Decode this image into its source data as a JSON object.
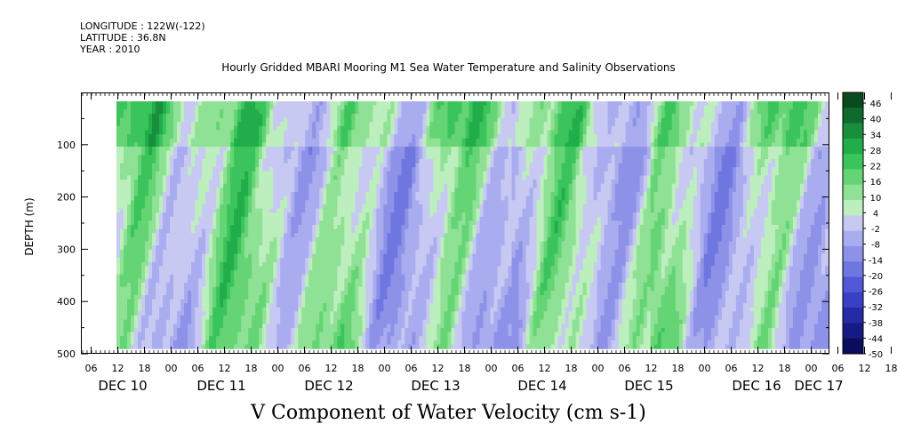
{
  "header": {
    "longitude": "LONGITUDE : 122W(-122)",
    "latitude": "LATITUDE : 36.8N",
    "year": "YEAR : 2010"
  },
  "title": "Hourly Gridded MBARI Mooring M1 Sea Water Temperature and Salinity Observations",
  "variable_title": "V Component of Water Velocity (cm s-1)",
  "chart_data": {
    "type": "heatmap",
    "title": "Hourly Gridded MBARI Mooring M1 Sea Water Temperature and Salinity Observations",
    "subtitle": "V Component of Water Velocity (cm s-1)",
    "xlabel": "",
    "ylabel": "DEPTH (m)",
    "y_ticks": [
      100,
      200,
      300,
      400,
      500
    ],
    "ylim": [
      500,
      0
    ],
    "x_hour_ticks": [
      "06",
      "12",
      "18",
      "00",
      "06",
      "12",
      "18",
      "00",
      "06",
      "12",
      "18",
      "00",
      "06",
      "12",
      "18",
      "00",
      "06",
      "12",
      "18",
      "00",
      "06",
      "12",
      "18",
      "00",
      "06",
      "12",
      "18",
      "00",
      "06",
      "12",
      "18",
      "00"
    ],
    "x_day_labels": [
      "DEC 10",
      "DEC 11",
      "DEC 12",
      "DEC 13",
      "DEC 14",
      "DEC 15",
      "DEC 16",
      "DEC 17"
    ],
    "colorbar": {
      "labels": [
        "46",
        "40",
        "34",
        "28",
        "22",
        "16",
        "10",
        "4",
        "-2",
        "-8",
        "-14",
        "-20",
        "-26",
        "-32",
        "-38",
        "-44",
        "-50"
      ],
      "colors": [
        "#0a4a1f",
        "#0f6b2d",
        "#178f3c",
        "#20ad4a",
        "#3cc45c",
        "#64d475",
        "#8fe195",
        "#bdeebd",
        "#c7c9f3",
        "#a9acee",
        "#8d92e8",
        "#6f76e0",
        "#5158d6",
        "#3940c4",
        "#262aa6",
        "#171a82",
        "#0b0c5c"
      ]
    },
    "heatmap_description": "V velocity vs time (Dec 10 - Dec 17) and depth (20-490 m), alternating green (positive) and blue/lavender (negative) vertical bands"
  }
}
